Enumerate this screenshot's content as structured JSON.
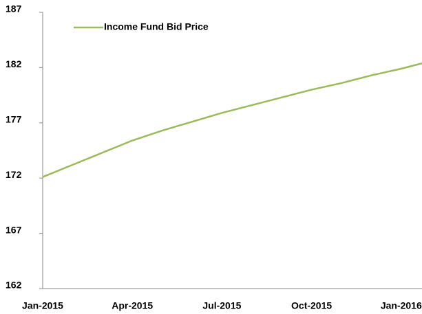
{
  "chart_data": {
    "type": "line",
    "categories": [
      "Jan-2015",
      null,
      null,
      "Apr-2015",
      null,
      null,
      "Jul-2015",
      null,
      null,
      "Oct-2015",
      null,
      null,
      "Jan-2016",
      null
    ],
    "series": [
      {
        "name": "Income Fund Bid Price",
        "color": "#9bbb59",
        "values": [
          172.1,
          173.2,
          174.3,
          175.4,
          176.3,
          177.1,
          177.9,
          178.6,
          179.3,
          180.0,
          180.6,
          181.3,
          181.9,
          182.6
        ]
      }
    ],
    "ylim": [
      162,
      187
    ],
    "yticks": [
      162,
      167,
      172,
      177,
      182,
      187
    ],
    "grid": false,
    "legend": "top-left"
  }
}
